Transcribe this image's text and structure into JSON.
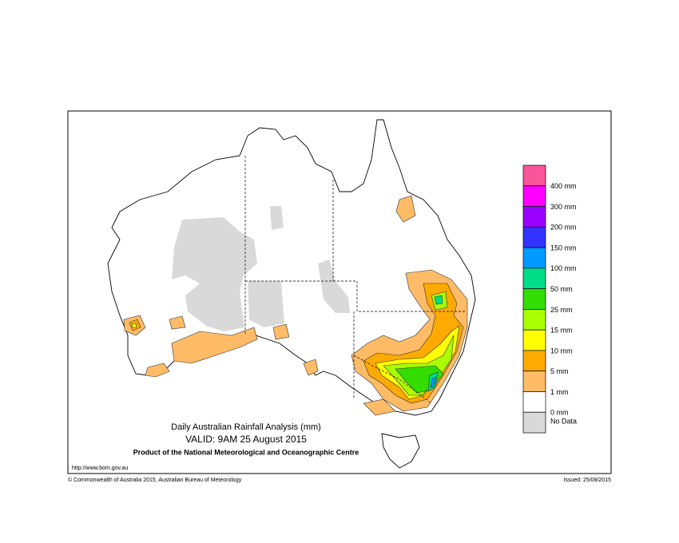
{
  "header": {
    "title": "Daily Australian Rainfall Analysis (mm)",
    "valid": "VALID: 9AM 25 August 2015",
    "product": "Product of the National Meteorological and Oceanographic Centre"
  },
  "legend": {
    "colors": [
      "#f9559a",
      "#ff00ff",
      "#9900ff",
      "#3333ff",
      "#0099ff",
      "#00dd88",
      "#33dd00",
      "#aaff00",
      "#ffff00",
      "#ffaa00",
      "#ffbb66",
      "#ffffff",
      "#d9d9d9"
    ],
    "labels": [
      "400 mm",
      "300 mm",
      "200 mm",
      "150 mm",
      "100 mm",
      "50 mm",
      "25 mm",
      "15 mm",
      "10 mm",
      "5 mm",
      "1 mm",
      "0 mm"
    ],
    "no_data": "No Data"
  },
  "footer": {
    "url": "http://www.bom.gov.au",
    "copyright": "© Commonwealth of Australia 2015, Australian Bureau of Meteorology",
    "issued": "Issued: 25/08/2015"
  }
}
